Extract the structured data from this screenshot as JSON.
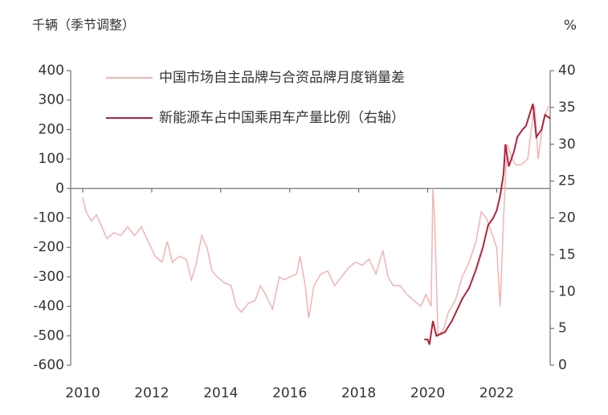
{
  "chart_data": {
    "type": "line",
    "left_axis_label": "千辆（季节调整）",
    "right_axis_label": "%",
    "xlim": [
      2009.65,
      2023.55
    ],
    "xticks": [
      2010,
      2012,
      2014,
      2016,
      2018,
      2020,
      2022
    ],
    "ylim": [
      -600,
      400
    ],
    "yticks": [
      400,
      300,
      200,
      100,
      0,
      -100,
      -200,
      -300,
      -400,
      -500,
      -600
    ],
    "y2lim": [
      0,
      40
    ],
    "y2ticks": [
      40,
      35,
      30,
      25,
      20,
      15,
      10,
      5,
      0
    ],
    "series": [
      {
        "name": "中国市场自主品牌与合资品牌月度销量差",
        "color": "#f2b3b3",
        "x": [
          2010.0,
          2010.1,
          2010.25,
          2010.4,
          2010.55,
          2010.7,
          2010.9,
          2011.1,
          2011.3,
          2011.5,
          2011.7,
          2011.9,
          2012.1,
          2012.3,
          2012.45,
          2012.6,
          2012.8,
          2013.0,
          2013.15,
          2013.3,
          2013.45,
          2013.6,
          2013.75,
          2013.9,
          2014.1,
          2014.3,
          2014.45,
          2014.6,
          2014.8,
          2015.0,
          2015.15,
          2015.3,
          2015.5,
          2015.7,
          2015.85,
          2016.0,
          2016.2,
          2016.3,
          2016.45,
          2016.55,
          2016.7,
          2016.9,
          2017.1,
          2017.3,
          2017.5,
          2017.7,
          2017.9,
          2018.1,
          2018.3,
          2018.5,
          2018.7,
          2018.85,
          2019.0,
          2019.2,
          2019.4,
          2019.6,
          2019.8,
          2019.95,
          2020.1,
          2020.15,
          2020.2,
          2020.3,
          2020.45,
          2020.6,
          2020.8,
          2021.0,
          2021.2,
          2021.4,
          2021.55,
          2021.7,
          2021.85,
          2022.0,
          2022.1,
          2022.2,
          2022.3,
          2022.45,
          2022.55,
          2022.7,
          2022.9,
          2023.0,
          2023.1,
          2023.2,
          2023.35,
          2023.5
        ],
        "values": [
          -30,
          -80,
          -110,
          -90,
          -130,
          -170,
          -150,
          -160,
          -130,
          -160,
          -130,
          -180,
          -230,
          -250,
          -180,
          -250,
          -230,
          -240,
          -310,
          -250,
          -160,
          -200,
          -280,
          -300,
          -320,
          -330,
          -400,
          -420,
          -390,
          -380,
          -330,
          -360,
          -410,
          -300,
          -310,
          -300,
          -290,
          -230,
          -330,
          -440,
          -330,
          -290,
          -280,
          -330,
          -300,
          -270,
          -250,
          -260,
          -240,
          -290,
          -210,
          -300,
          -330,
          -330,
          -360,
          -380,
          -400,
          -360,
          -400,
          0,
          -100,
          -500,
          -480,
          -420,
          -380,
          -300,
          -250,
          -180,
          -80,
          -100,
          -150,
          -200,
          -400,
          -100,
          150,
          100,
          80,
          80,
          100,
          200,
          280,
          100,
          230,
          280
        ]
      },
      {
        "name": "新能源车占中国乘用车产量比例（右轴）",
        "color": "#b0243a",
        "axis": "y2",
        "x": [
          2019.9,
          2020.0,
          2020.05,
          2020.15,
          2020.25,
          2020.5,
          2020.7,
          2020.9,
          2021.0,
          2021.2,
          2021.4,
          2021.6,
          2021.75,
          2021.9,
          2022.0,
          2022.1,
          2022.2,
          2022.25,
          2022.35,
          2022.5,
          2022.6,
          2022.75,
          2022.85,
          2022.95,
          2023.05,
          2023.15,
          2023.3,
          2023.4,
          2023.55
        ],
        "values": [
          3.5,
          3.5,
          2.8,
          6,
          4,
          4.5,
          6,
          8,
          9,
          10.5,
          13,
          16,
          19,
          20,
          21,
          23,
          26,
          30,
          27,
          29,
          31,
          32,
          32.5,
          34,
          35.5,
          31,
          32,
          34,
          33.5
        ]
      }
    ]
  }
}
